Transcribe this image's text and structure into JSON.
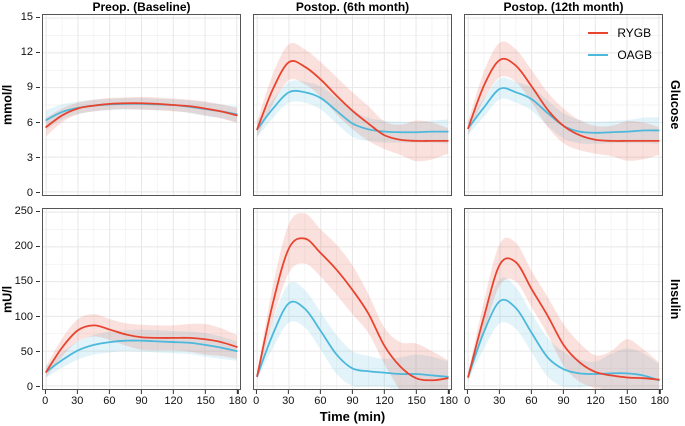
{
  "figure_title": "",
  "chart_data": {
    "type": "line",
    "layout": "facet-grid 2 rows x 3 cols, loess-smoothed means with confidence bands, legend top-right panel, grid on (light gray), white background",
    "col_titles": [
      "Preop. (Baseline)",
      "Postop. (6th month)",
      "Postop. (12th month)"
    ],
    "xlabel": "Time (min)",
    "x": [
      0,
      15,
      30,
      45,
      60,
      75,
      90,
      105,
      120,
      135,
      150,
      165,
      180
    ],
    "x_ticks": [
      0,
      30,
      60,
      90,
      120,
      150,
      180
    ],
    "xlim": [
      0,
      180
    ],
    "legend": [
      {
        "label": "RYGB",
        "color": "#E8432E"
      },
      {
        "label": "OAGB",
        "color": "#4CB8DB"
      }
    ],
    "band_opacity": 0.16,
    "grid_major_color": "#E7E7E7",
    "grid_minor_color": "#F3F3F3",
    "panel_border_color": "#545454",
    "rows": [
      {
        "label": "Glucose",
        "ylabel": "mmol/l",
        "ylim": [
          0,
          15
        ],
        "y_ticks": [
          0,
          3,
          6,
          9,
          12,
          15
        ],
        "panels": [
          {
            "series": [
              {
                "name": "RYGB",
                "mean": [
                  5.6,
                  6.6,
                  7.2,
                  7.45,
                  7.6,
                  7.65,
                  7.65,
                  7.6,
                  7.5,
                  7.4,
                  7.2,
                  6.95,
                  6.6
                ],
                "hw": [
                  0.8,
                  0.6,
                  0.5,
                  0.5,
                  0.5,
                  0.5,
                  0.55,
                  0.55,
                  0.55,
                  0.55,
                  0.6,
                  0.6,
                  0.65
                ]
              },
              {
                "name": "OAGB",
                "mean": [
                  6.2,
                  6.9,
                  7.25,
                  7.45,
                  7.55,
                  7.6,
                  7.6,
                  7.55,
                  7.5,
                  7.35,
                  7.15,
                  6.95,
                  6.7
                ],
                "hw": [
                  0.85,
                  0.65,
                  0.55,
                  0.5,
                  0.5,
                  0.5,
                  0.5,
                  0.5,
                  0.5,
                  0.55,
                  0.6,
                  0.6,
                  0.7
                ]
              }
            ]
          },
          {
            "series": [
              {
                "name": "RYGB",
                "mean": [
                  5.4,
                  8.9,
                  11.2,
                  10.8,
                  9.7,
                  8.3,
                  7.0,
                  5.9,
                  4.9,
                  4.5,
                  4.4,
                  4.4,
                  4.4
                ],
                "hw": [
                  0.7,
                  1.3,
                  1.55,
                  1.5,
                  1.5,
                  1.6,
                  1.6,
                  1.5,
                  1.2,
                  1.3,
                  1.75,
                  1.6,
                  1.1
                ]
              },
              {
                "name": "OAGB",
                "mean": [
                  5.4,
                  7.2,
                  8.6,
                  8.6,
                  8.1,
                  7.0,
                  5.9,
                  5.4,
                  5.2,
                  5.15,
                  5.15,
                  5.2,
                  5.2
                ],
                "hw": [
                  0.7,
                  0.8,
                  0.9,
                  0.9,
                  1.0,
                  1.1,
                  1.15,
                  1.0,
                  0.95,
                  0.9,
                  0.9,
                  0.95,
                  1.05
                ]
              }
            ]
          },
          {
            "series": [
              {
                "name": "RYGB",
                "mean": [
                  5.5,
                  9.2,
                  11.4,
                  10.9,
                  9.1,
                  7.1,
                  5.7,
                  4.9,
                  4.5,
                  4.4,
                  4.4,
                  4.4,
                  4.4
                ],
                "hw": [
                  0.6,
                  1.2,
                  1.5,
                  1.4,
                  1.4,
                  1.5,
                  1.5,
                  1.3,
                  1.2,
                  1.3,
                  1.7,
                  1.6,
                  1.2
                ]
              },
              {
                "name": "OAGB",
                "mean": [
                  5.5,
                  7.3,
                  8.9,
                  8.6,
                  8.0,
                  6.8,
                  5.7,
                  5.2,
                  5.1,
                  5.15,
                  5.2,
                  5.3,
                  5.3
                ],
                "hw": [
                  0.6,
                  0.8,
                  0.9,
                  0.9,
                  1.0,
                  1.1,
                  1.1,
                  1.0,
                  0.95,
                  0.95,
                  1.0,
                  1.1,
                  1.15
                ]
              }
            ]
          }
        ]
      },
      {
        "label": "Insulin",
        "ylabel": "mU/l",
        "ylim": [
          0,
          250
        ],
        "y_ticks": [
          0,
          50,
          100,
          150,
          200,
          250
        ],
        "panels": [
          {
            "series": [
              {
                "name": "RYGB",
                "mean": [
                  20,
                  55,
                  80,
                  87,
                  81,
                  74,
                  70,
                  69,
                  69,
                  69,
                  67,
                  63,
                  56
                ],
                "hw": [
                  8,
                  13,
                  16,
                  16,
                  15,
                  16,
                  18,
                  18,
                  18,
                  20,
                  22,
                  20,
                  17
                ]
              },
              {
                "name": "OAGB",
                "mean": [
                  20,
                  37,
                  51,
                  59,
                  63,
                  65,
                  65,
                  64,
                  63,
                  62,
                  59,
                  55,
                  50
                ],
                "hw": [
                  8,
                  11,
                  13,
                  14,
                  15,
                  15,
                  16,
                  16,
                  16,
                  16,
                  17,
                  16,
                  14
                ]
              }
            ]
          },
          {
            "series": [
              {
                "name": "RYGB",
                "mean": [
                  14,
                  120,
                  198,
                  212,
                  191,
                  167,
                  138,
                  104,
                  58,
                  28,
                  11,
                  8,
                  11
                ],
                "hw": [
                  5,
                  25,
                  35,
                  36,
                  34,
                  36,
                  35,
                  28,
                  26,
                  35,
                  50,
                  42,
                  26
                ]
              },
              {
                "name": "OAGB",
                "mean": [
                  14,
                  75,
                  119,
                  111,
                  79,
                  45,
                  25,
                  21,
                  19,
                  17,
                  17,
                  15,
                  13
                ],
                "hw": [
                  5,
                  20,
                  28,
                  27,
                  27,
                  28,
                  25,
                  22,
                  20,
                  24,
                  28,
                  27,
                  22
                ]
              }
            ]
          },
          {
            "series": [
              {
                "name": "RYGB",
                "mean": [
                  13,
                  100,
                  175,
                  178,
                  139,
                  101,
                  59,
                  34,
                  20,
                  15,
                  12,
                  11,
                  9
                ],
                "hw": [
                  5,
                  22,
                  30,
                  28,
                  26,
                  27,
                  30,
                  28,
                  24,
                  35,
                  55,
                  42,
                  25
                ]
              },
              {
                "name": "OAGB",
                "mean": [
                  13,
                  78,
                  122,
                  112,
                  76,
                  41,
                  24,
                  18,
                  17,
                  18,
                  18,
                  15,
                  8
                ],
                "hw": [
                  5,
                  24,
                  32,
                  30,
                  28,
                  28,
                  25,
                  20,
                  18,
                  28,
                  36,
                  32,
                  24
                ]
              }
            ]
          }
        ]
      }
    ]
  }
}
